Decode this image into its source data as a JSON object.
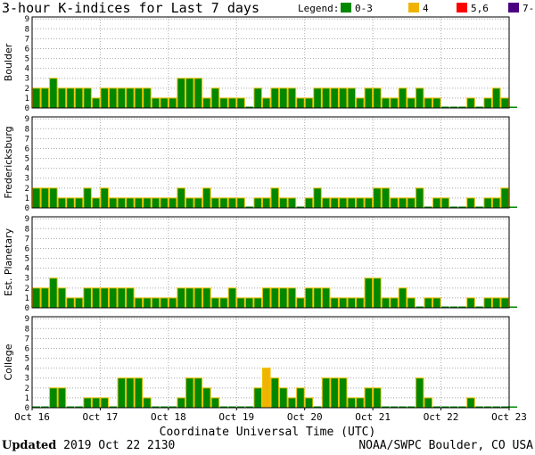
{
  "title": "3-hour K-indices for Last 7 days",
  "legend": {
    "label": "Legend:",
    "items": [
      {
        "label": "0-3",
        "color": "#008800"
      },
      {
        "label": "4",
        "color": "#f0b400"
      },
      {
        "label": "5,6",
        "color": "#ff0000"
      },
      {
        "label": "7-9",
        "color": "#4b0082"
      }
    ]
  },
  "footer": {
    "xlabel": "Coordinate Universal Time (UTC)",
    "updated_label": "Updated",
    "updated_value": "2019 Oct 22 2130",
    "credit": "NOAA/SWPC Boulder, CO USA"
  },
  "chart_data": [
    {
      "type": "bar",
      "title": "Boulder",
      "ylim": [
        0,
        9
      ],
      "yticks": [
        "0",
        "1",
        "2",
        "3",
        "4",
        "5",
        "6",
        "7",
        "8",
        "9"
      ],
      "xticks": [
        "Oct 16",
        "Oct 17",
        "Oct 18",
        "Oct 19",
        "Oct 20",
        "Oct 21",
        "Oct 22",
        "Oct 23"
      ],
      "grid": true,
      "values": [
        2,
        2,
        3,
        2,
        2,
        2,
        2,
        1,
        2,
        2,
        2,
        2,
        2,
        2,
        1,
        1,
        1,
        3,
        3,
        3,
        1,
        2,
        1,
        1,
        1,
        0,
        2,
        1,
        2,
        2,
        2,
        1,
        1,
        2,
        2,
        2,
        2,
        2,
        1,
        2,
        2,
        1,
        1,
        2,
        1,
        2,
        1,
        1,
        0,
        0,
        0,
        1,
        0,
        1,
        2,
        1,
        0
      ]
    },
    {
      "type": "bar",
      "title": "Fredericksburg",
      "ylim": [
        0,
        9
      ],
      "yticks": [
        "0",
        "1",
        "2",
        "3",
        "4",
        "5",
        "6",
        "7",
        "8",
        "9"
      ],
      "xticks": [
        "Oct 16",
        "Oct 17",
        "Oct 18",
        "Oct 19",
        "Oct 20",
        "Oct 21",
        "Oct 22",
        "Oct 23"
      ],
      "grid": true,
      "values": [
        2,
        2,
        2,
        1,
        1,
        1,
        2,
        1,
        2,
        1,
        1,
        1,
        1,
        1,
        1,
        1,
        1,
        2,
        1,
        1,
        2,
        1,
        1,
        1,
        1,
        0,
        1,
        1,
        2,
        1,
        1,
        0,
        1,
        2,
        1,
        1,
        1,
        1,
        1,
        1,
        2,
        2,
        1,
        1,
        1,
        2,
        0,
        1,
        1,
        0,
        0,
        1,
        0,
        1,
        1,
        2,
        0
      ]
    },
    {
      "type": "bar",
      "title": "Est. Planetary",
      "ylim": [
        0,
        9
      ],
      "yticks": [
        "0",
        "1",
        "2",
        "3",
        "4",
        "5",
        "6",
        "7",
        "8",
        "9"
      ],
      "xticks": [
        "Oct 16",
        "Oct 17",
        "Oct 18",
        "Oct 19",
        "Oct 20",
        "Oct 21",
        "Oct 22",
        "Oct 23"
      ],
      "grid": true,
      "values": [
        2,
        2,
        3,
        2,
        1,
        1,
        2,
        2,
        2,
        2,
        2,
        2,
        1,
        1,
        1,
        1,
        1,
        2,
        2,
        2,
        2,
        1,
        1,
        2,
        1,
        1,
        1,
        2,
        2,
        2,
        2,
        1,
        2,
        2,
        2,
        1,
        1,
        1,
        1,
        3,
        3,
        1,
        1,
        2,
        1,
        0,
        1,
        1,
        0,
        0,
        0,
        1,
        0,
        1,
        1,
        1,
        0
      ]
    },
    {
      "type": "bar",
      "title": "College",
      "ylim": [
        0,
        9
      ],
      "yticks": [
        "0",
        "1",
        "2",
        "3",
        "4",
        "5",
        "6",
        "7",
        "8",
        "9"
      ],
      "xticks": [
        "Oct 16",
        "Oct 17",
        "Oct 18",
        "Oct 19",
        "Oct 20",
        "Oct 21",
        "Oct 22",
        "Oct 23"
      ],
      "grid": true,
      "values": [
        0,
        0,
        2,
        2,
        0,
        0,
        1,
        1,
        1,
        0,
        3,
        3,
        3,
        1,
        0,
        0,
        0,
        1,
        3,
        3,
        2,
        1,
        0,
        0,
        0,
        0,
        2,
        4,
        3,
        2,
        1,
        2,
        1,
        0,
        3,
        3,
        3,
        1,
        1,
        2,
        2,
        0,
        0,
        0,
        0,
        3,
        1,
        0,
        0,
        0,
        0,
        1,
        0,
        0,
        0,
        0,
        0
      ]
    }
  ]
}
